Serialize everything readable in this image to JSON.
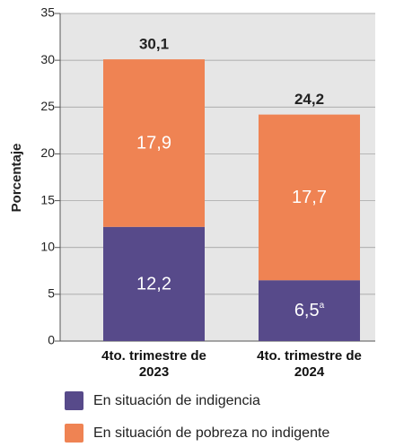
{
  "chart_data": {
    "type": "stacked_bar",
    "ylabel": "Porcentaje",
    "categories": [
      "4to. trimestre de 2023",
      "4to. trimestre de 2024"
    ],
    "series": [
      {
        "name": "En situación de indigencia",
        "color": "#574a8a",
        "values": [
          12.2,
          6.5
        ],
        "value_labels": [
          "12,2",
          "6,5"
        ]
      },
      {
        "name": "En situación de pobreza no indigente",
        "color": "#ef8353",
        "values": [
          17.9,
          17.7
        ],
        "value_labels": [
          "17,9",
          "17,7"
        ]
      }
    ],
    "totals": [
      30.1,
      24.2
    ],
    "total_labels": [
      "30,1",
      "24,2"
    ],
    "annotations": [
      {
        "text": "a",
        "series": "En situación de indigencia",
        "category": "4to. trimestre de 2024"
      }
    ],
    "ylim": [
      0,
      35
    ],
    "yticks": [
      0,
      5,
      10,
      15,
      20,
      25,
      30,
      35
    ],
    "grid": true,
    "background": "#e6e6e6"
  }
}
